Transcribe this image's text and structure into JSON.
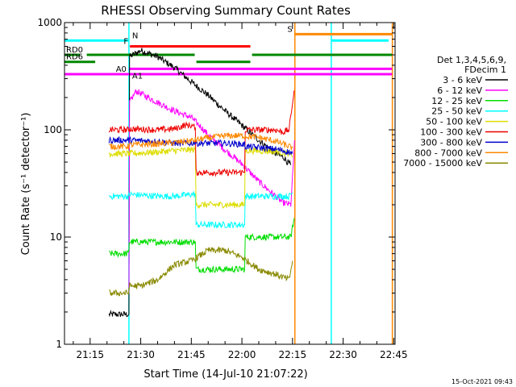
{
  "chart_data": {
    "type": "line",
    "title": "RHESSI Observing Summary Count Rates",
    "xlabel": "Start Time (14-Jul-10 21:07:22)",
    "ylabel": "Count Rate (s⁻¹ detector⁻¹)",
    "yscale": "log",
    "ylim": [
      1,
      1000
    ],
    "xlim_minutes": [
      7.4,
      105.4
    ],
    "x_ticks": [
      {
        "label": "21:15",
        "t": 15
      },
      {
        "label": "21:30",
        "t": 30
      },
      {
        "label": "21:45",
        "t": 45
      },
      {
        "label": "22:00",
        "t": 60
      },
      {
        "label": "22:15",
        "t": 75
      },
      {
        "label": "22:30",
        "t": 90
      },
      {
        "label": "22:45",
        "t": 105
      }
    ],
    "y_ticks": [
      {
        "label": "1",
        "v": 1
      },
      {
        "label": "10",
        "v": 10
      },
      {
        "label": "100",
        "v": 100
      },
      {
        "label": "1000",
        "v": 1000
      }
    ],
    "legend_header": [
      "Det 1,3,4,5,6,9,",
      "FDecim 1"
    ],
    "footer_date": "15-Oct-2021 09:43",
    "series": [
      {
        "name": "3 - 6 keV",
        "color": "#000000",
        "points": [
          [
            20.6,
            1.9
          ],
          [
            26.5,
            1.9
          ],
          [
            26.7,
            480
          ],
          [
            30,
            550
          ],
          [
            35,
            480
          ],
          [
            40,
            380
          ],
          [
            45,
            280
          ],
          [
            50,
            210
          ],
          [
            55,
            150
          ],
          [
            60,
            110
          ],
          [
            65,
            80
          ],
          [
            70,
            60
          ],
          [
            72.5,
            55
          ],
          [
            73.5,
            50
          ],
          [
            74.5,
            47
          ]
        ]
      },
      {
        "name": "6 - 12 keV",
        "color": "#ff00ff",
        "points": [
          [
            26.5,
            3
          ],
          [
            26.7,
            180
          ],
          [
            28.6,
            230
          ],
          [
            35,
            180
          ],
          [
            40,
            150
          ],
          [
            45,
            130
          ],
          [
            48,
            105
          ],
          [
            50,
            90
          ],
          [
            55,
            65
          ],
          [
            60,
            48
          ],
          [
            65,
            33
          ],
          [
            70,
            24
          ],
          [
            72,
            21
          ],
          [
            74.5,
            20
          ],
          [
            75,
            35
          ],
          [
            75.6,
            80
          ]
        ]
      },
      {
        "name": "12 - 25 keV",
        "color": "#00dd00",
        "points": [
          [
            20.6,
            7
          ],
          [
            26.4,
            7
          ],
          [
            26.6,
            9
          ],
          [
            35,
            9
          ],
          [
            40,
            9
          ],
          [
            45,
            9
          ],
          [
            46.2,
            9
          ],
          [
            46.4,
            5
          ],
          [
            55,
            5
          ],
          [
            60.8,
            5
          ],
          [
            61,
            10
          ],
          [
            70,
            10
          ],
          [
            74,
            10
          ],
          [
            74.5,
            10
          ],
          [
            75.5,
            15
          ]
        ]
      },
      {
        "name": "25 - 50 keV",
        "color": "#00ffff",
        "points": [
          [
            20.6,
            24
          ],
          [
            26.4,
            24
          ],
          [
            26.6,
            25
          ],
          [
            35,
            24
          ],
          [
            40,
            24
          ],
          [
            45,
            25
          ],
          [
            46.2,
            25
          ],
          [
            46.4,
            13
          ],
          [
            55,
            13
          ],
          [
            60.8,
            13
          ],
          [
            61,
            24
          ],
          [
            70,
            24
          ],
          [
            74,
            24
          ],
          [
            75,
            26
          ]
        ]
      },
      {
        "name": "50 - 100 keV",
        "color": "#dddd00",
        "points": [
          [
            20.6,
            60
          ],
          [
            26.4,
            60
          ],
          [
            26.6,
            60
          ],
          [
            35,
            62
          ],
          [
            40,
            64
          ],
          [
            45,
            65
          ],
          [
            46.2,
            65
          ],
          [
            46.4,
            20
          ],
          [
            55,
            20
          ],
          [
            60.8,
            20
          ],
          [
            61,
            64
          ],
          [
            70,
            63
          ],
          [
            74,
            60
          ],
          [
            75,
            55
          ]
        ]
      },
      {
        "name": "100 - 300 keV",
        "color": "#ee0000",
        "points": [
          [
            20.6,
            100
          ],
          [
            26.4,
            100
          ],
          [
            26.6,
            102
          ],
          [
            35,
            100
          ],
          [
            40,
            102
          ],
          [
            43,
            110
          ],
          [
            45,
            110
          ],
          [
            46.2,
            105
          ],
          [
            46.4,
            40
          ],
          [
            55,
            40
          ],
          [
            60.8,
            40
          ],
          [
            61,
            100
          ],
          [
            70,
            100
          ],
          [
            72,
            95
          ],
          [
            74,
            100
          ],
          [
            75,
            180
          ],
          [
            75.6,
            230
          ]
        ]
      },
      {
        "name": "300 - 800 keV",
        "color": "#0000cc",
        "points": [
          [
            20.6,
            80
          ],
          [
            26.4,
            80
          ],
          [
            26.6,
            80
          ],
          [
            35,
            78
          ],
          [
            40,
            75
          ],
          [
            45,
            75
          ],
          [
            46.2,
            77
          ],
          [
            46.4,
            75
          ],
          [
            55,
            75
          ],
          [
            60.8,
            73
          ],
          [
            61,
            70
          ],
          [
            70,
            66
          ],
          [
            74,
            62
          ],
          [
            75,
            60
          ]
        ]
      },
      {
        "name": "800 - 7000 keV",
        "color": "#ff8800",
        "points": [
          [
            20.6,
            70
          ],
          [
            26.4,
            70
          ],
          [
            26.6,
            72
          ],
          [
            35,
            74
          ],
          [
            40,
            76
          ],
          [
            45,
            79
          ],
          [
            50,
            84
          ],
          [
            55,
            88
          ],
          [
            60,
            88
          ],
          [
            65,
            85
          ],
          [
            70,
            78
          ],
          [
            74,
            70
          ],
          [
            75,
            68
          ]
        ]
      },
      {
        "name": "7000 - 15000 keV",
        "color": "#888800",
        "points": [
          [
            20.6,
            3
          ],
          [
            26.4,
            3
          ],
          [
            26.6,
            3.5
          ],
          [
            30,
            3.5
          ],
          [
            35,
            4
          ],
          [
            40,
            5.5
          ],
          [
            45,
            6
          ],
          [
            50,
            7.5
          ],
          [
            55,
            7.5
          ],
          [
            60,
            6.5
          ],
          [
            65,
            5
          ],
          [
            70,
            4.5
          ],
          [
            74,
            4
          ],
          [
            75,
            6
          ]
        ]
      }
    ],
    "state_bars": [
      {
        "label": "F",
        "color": "#ff0000",
        "value": 600,
        "t_start": 26.8,
        "t_end": 62.5
      },
      {
        "label": "N",
        "color": "#00ffff",
        "value": 680,
        "t_start": 7.4,
        "t_end": 26.5
      },
      {
        "label": "N",
        "color": "#00ffff",
        "value": 680,
        "t_start": 86.5,
        "t_end": 103.5
      },
      {
        "label": "S",
        "color": "#ff8800",
        "value": 780,
        "t_start": 75.7,
        "t_end": 104.5
      },
      {
        "label": "RD0",
        "color": "#008800",
        "value": 500,
        "t_start": 7.4,
        "t_end": 12
      },
      {
        "label": "RD0",
        "color": "#008800",
        "value": 500,
        "t_start": 14,
        "t_end": 46
      },
      {
        "label": "RD0",
        "color": "#008800",
        "value": 500,
        "t_start": 63,
        "t_end": 104.5
      },
      {
        "label": "RD6",
        "color": "#008800",
        "value": 430,
        "t_start": 7.4,
        "t_end": 16.5
      },
      {
        "label": "RD6",
        "color": "#008800",
        "value": 430,
        "t_start": 46.5,
        "t_end": 62.5
      },
      {
        "label": "A0",
        "color": "#ff00ff",
        "value": 330,
        "t_start": 7.4,
        "t_end": 104.5
      },
      {
        "label": "A1",
        "color": "#ff00ff",
        "value": 370,
        "t_start": 26.5,
        "t_end": 104.5
      }
    ],
    "vertical_markers": [
      {
        "color": "#00ffff",
        "t": 26.5
      },
      {
        "color": "#00ffff",
        "t": 86.5
      },
      {
        "color": "#ff8800",
        "t": 75.7
      },
      {
        "color": "#ff8800",
        "t": 104.6
      }
    ]
  }
}
